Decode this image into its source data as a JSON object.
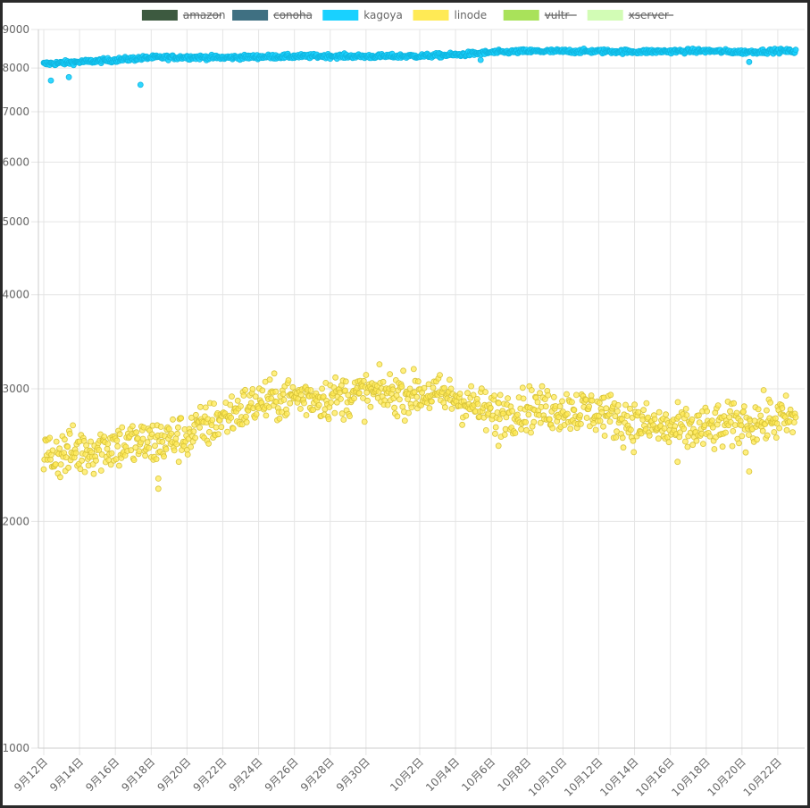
{
  "chart_data": {
    "type": "scatter",
    "title": "",
    "xlabel": "",
    "ylabel": "",
    "y_scale": "log",
    "ylim": [
      1000,
      9000
    ],
    "yticks": [
      1000,
      2000,
      3000,
      4000,
      5000,
      6000,
      7000,
      8000,
      9000
    ],
    "xticks": [
      "9月12日",
      "9月14日",
      "9月16日",
      "9月18日",
      "9月20日",
      "9月22日",
      "9月24日",
      "9月26日",
      "9月28日",
      "9月30日",
      "10月2日",
      "10月4日",
      "10月6日",
      "10月8日",
      "10月10日",
      "10月12日",
      "10月14日",
      "10月16日",
      "10月18日",
      "10月20日",
      "10月22日"
    ],
    "x_range": [
      "9月12日",
      "10月23日"
    ],
    "grid": true,
    "legend_position": "top",
    "legend": [
      {
        "name": "amazon",
        "color": "#3d5a40",
        "hidden": true
      },
      {
        "name": "conoha",
        "color": "#3f7082",
        "hidden": true
      },
      {
        "name": "kagoya",
        "color": "#19d1ff",
        "hidden": false
      },
      {
        "name": "linode",
        "color": "#ffea55",
        "hidden": false
      },
      {
        "name": "vultr",
        "color": "#a9e25a",
        "hidden": true
      },
      {
        "name": "xserver",
        "color": "#d2fcb5",
        "hidden": true
      }
    ],
    "series": [
      {
        "name": "kagoya",
        "color": "#19d1ff",
        "marker": "point",
        "trend": [
          {
            "date": "9月12日",
            "value": 8100
          },
          {
            "date": "9月14日",
            "value": 8150
          },
          {
            "date": "9月16日",
            "value": 8200
          },
          {
            "date": "9月18日",
            "value": 8260
          },
          {
            "date": "9月20日",
            "value": 8270
          },
          {
            "date": "9月22日",
            "value": 8260
          },
          {
            "date": "9月24日",
            "value": 8280
          },
          {
            "date": "9月26日",
            "value": 8290
          },
          {
            "date": "9月28日",
            "value": 8300
          },
          {
            "date": "9月30日",
            "value": 8290
          },
          {
            "date": "10月2日",
            "value": 8300
          },
          {
            "date": "10月4日",
            "value": 8330
          },
          {
            "date": "10月6日",
            "value": 8390
          },
          {
            "date": "10月8日",
            "value": 8420
          },
          {
            "date": "10月10日",
            "value": 8420
          },
          {
            "date": "10月12日",
            "value": 8420
          },
          {
            "date": "10月14日",
            "value": 8410
          },
          {
            "date": "10月16日",
            "value": 8420
          },
          {
            "date": "10月18日",
            "value": 8430
          },
          {
            "date": "10月20日",
            "value": 8400
          },
          {
            "date": "10月22日",
            "value": 8430
          },
          {
            "date": "10月23日",
            "value": 8420
          }
        ],
        "spread": 50,
        "outliers": [
          {
            "date": "9月12日",
            "value": 7700
          },
          {
            "date": "9月13日",
            "value": 7780
          },
          {
            "date": "9月17日",
            "value": 7600
          },
          {
            "date": "10月5日",
            "value": 8200
          },
          {
            "date": "10月20日",
            "value": 8150
          }
        ]
      },
      {
        "name": "linode",
        "color": "#ffea55",
        "marker": "point",
        "trend": [
          {
            "date": "9月12日",
            "value": 2450
          },
          {
            "date": "9月14日",
            "value": 2480
          },
          {
            "date": "9月16日",
            "value": 2530
          },
          {
            "date": "9月18日",
            "value": 2540
          },
          {
            "date": "9月20日",
            "value": 2600
          },
          {
            "date": "9月22日",
            "value": 2750
          },
          {
            "date": "9月24日",
            "value": 2880
          },
          {
            "date": "9月26日",
            "value": 2930
          },
          {
            "date": "9月28日",
            "value": 2920
          },
          {
            "date": "9月30日",
            "value": 2960
          },
          {
            "date": "10月2日",
            "value": 2960
          },
          {
            "date": "10月4日",
            "value": 2920
          },
          {
            "date": "10月6日",
            "value": 2780
          },
          {
            "date": "10月8日",
            "value": 2830
          },
          {
            "date": "10月10日",
            "value": 2820
          },
          {
            "date": "10月12日",
            "value": 2800
          },
          {
            "date": "10月14日",
            "value": 2700
          },
          {
            "date": "10月16日",
            "value": 2650
          },
          {
            "date": "10月18日",
            "value": 2650
          },
          {
            "date": "10月20日",
            "value": 2700
          },
          {
            "date": "10月22日",
            "value": 2740
          },
          {
            "date": "10月23日",
            "value": 2720
          }
        ],
        "spread": 170,
        "outliers": [
          {
            "date": "9月18日",
            "value": 2280
          },
          {
            "date": "9月18日",
            "value": 2210
          },
          {
            "date": "10月6日",
            "value": 2520
          },
          {
            "date": "10月16日",
            "value": 2400
          },
          {
            "date": "10月20日",
            "value": 2330
          }
        ]
      }
    ]
  }
}
